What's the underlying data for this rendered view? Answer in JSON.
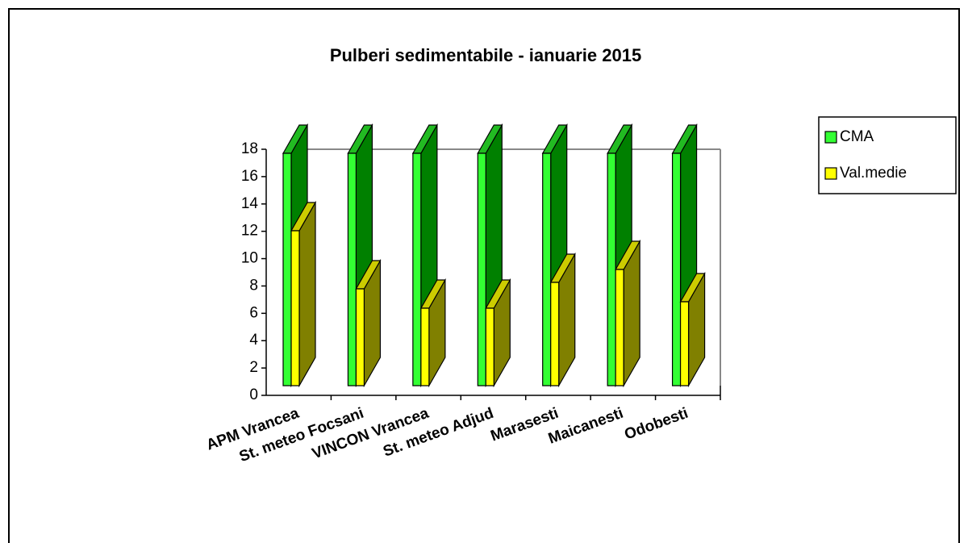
{
  "chart_data": {
    "type": "bar3d",
    "title": "Pulberi sedimentabile - ianuarie  2015",
    "categories": [
      "APM Vrancea",
      "St. meteo Focsani",
      "VINCON Vrancea",
      "St. meteo Adjud",
      "Marasesti",
      "Maicanesti",
      "Odobesti"
    ],
    "series": [
      {
        "name": "CMA",
        "color": "#33ff33",
        "values": [
          18,
          18,
          18,
          18,
          18,
          18,
          18
        ]
      },
      {
        "name": "Val.medie",
        "color": "#ffff00",
        "values": [
          12,
          7.5,
          6,
          6,
          8,
          9,
          6.5
        ]
      }
    ],
    "ylim": [
      0,
      18
    ],
    "yticks": [
      0,
      2,
      4,
      6,
      8,
      10,
      12,
      14,
      16,
      18
    ],
    "grid": false,
    "legend": "right"
  }
}
